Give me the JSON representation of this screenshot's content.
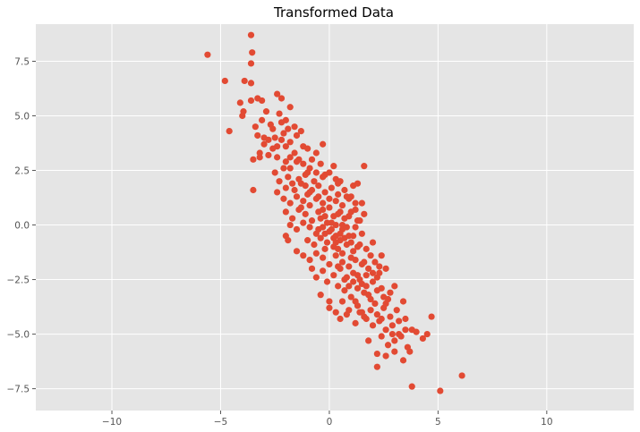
{
  "chart_data": {
    "type": "scatter",
    "title": "Transformed Data",
    "xlabel": "",
    "ylabel": "",
    "xlim": [
      -13.5,
      14
    ],
    "ylim": [
      -8.5,
      9.2
    ],
    "x_ticks": [
      -10,
      -5,
      0,
      5,
      10
    ],
    "x_tick_labels": [
      "−10",
      "−5",
      "0",
      "5",
      "10"
    ],
    "y_ticks": [
      -7.5,
      -5.0,
      -2.5,
      0.0,
      2.5,
      5.0,
      7.5
    ],
    "y_tick_labels": [
      "−7.5",
      "−5.0",
      "−2.5",
      "0.0",
      "2.5",
      "5.0",
      "7.5"
    ],
    "grid": true,
    "colors": {
      "background": "#E5E5E5",
      "grid": "#FFFFFF",
      "marker": "#E24A33"
    },
    "series": [
      {
        "points": [
          [
            -5.6,
            7.8
          ],
          [
            -3.6,
            8.7
          ],
          [
            -3.55,
            7.9
          ],
          [
            -3.6,
            7.4
          ],
          [
            -4.8,
            6.6
          ],
          [
            -3.9,
            6.6
          ],
          [
            -3.6,
            6.5
          ],
          [
            -4.6,
            4.3
          ],
          [
            -4.1,
            5.6
          ],
          [
            -4.0,
            5.0
          ],
          [
            -3.95,
            5.2
          ],
          [
            -3.6,
            5.7
          ],
          [
            -3.3,
            5.8
          ],
          [
            -3.1,
            5.7
          ],
          [
            -2.9,
            5.2
          ],
          [
            -3.1,
            4.8
          ],
          [
            -3.4,
            4.5
          ],
          [
            -3.5,
            3.0
          ],
          [
            -3.5,
            1.6
          ],
          [
            -3.2,
            3.3
          ],
          [
            -3.0,
            3.7
          ],
          [
            -2.6,
            4.4
          ],
          [
            -2.4,
            6.0
          ],
          [
            -2.2,
            5.8
          ],
          [
            -2.3,
            5.1
          ],
          [
            -2.0,
            4.8
          ],
          [
            -1.8,
            5.4
          ],
          [
            -1.6,
            4.5
          ],
          [
            -2.5,
            4.0
          ],
          [
            -2.2,
            3.9
          ],
          [
            -2.0,
            3.6
          ],
          [
            -1.8,
            3.8
          ],
          [
            -1.5,
            4.1
          ],
          [
            -1.2,
            3.6
          ],
          [
            -1.0,
            3.5
          ],
          [
            -0.6,
            3.3
          ],
          [
            -0.3,
            3.7
          ],
          [
            -2.8,
            3.2
          ],
          [
            -2.4,
            3.1
          ],
          [
            -2.0,
            2.9
          ],
          [
            -1.8,
            2.6
          ],
          [
            -1.5,
            2.9
          ],
          [
            -1.2,
            2.8
          ],
          [
            -0.9,
            2.6
          ],
          [
            -0.6,
            2.4
          ],
          [
            -0.3,
            2.2
          ],
          [
            0.0,
            2.4
          ],
          [
            0.3,
            2.1
          ],
          [
            -2.5,
            2.4
          ],
          [
            -2.3,
            2.0
          ],
          [
            -2.0,
            1.7
          ],
          [
            -1.7,
            1.9
          ],
          [
            -1.4,
            2.1
          ],
          [
            -1.1,
            1.8
          ],
          [
            -0.8,
            1.6
          ],
          [
            -0.5,
            1.8
          ],
          [
            -0.2,
            1.5
          ],
          [
            0.1,
            1.7
          ],
          [
            0.4,
            1.4
          ],
          [
            0.7,
            1.6
          ],
          [
            -2.4,
            1.5
          ],
          [
            -2.1,
            1.2
          ],
          [
            -1.8,
            1.0
          ],
          [
            -1.5,
            1.3
          ],
          [
            -1.2,
            1.1
          ],
          [
            -0.9,
            0.9
          ],
          [
            -0.6,
            1.2
          ],
          [
            -0.3,
            1.0
          ],
          [
            0.0,
            0.8
          ],
          [
            0.3,
            1.1
          ],
          [
            0.6,
            0.9
          ],
          [
            0.9,
            1.2
          ],
          [
            1.2,
            1.0
          ],
          [
            -2.0,
            0.6
          ],
          [
            -1.7,
            0.3
          ],
          [
            -1.4,
            0.7
          ],
          [
            -1.1,
            0.5
          ],
          [
            -0.8,
            0.2
          ],
          [
            -0.5,
            0.6
          ],
          [
            -0.2,
            0.4
          ],
          [
            0.1,
            0.1
          ],
          [
            0.4,
            0.5
          ],
          [
            0.7,
            0.3
          ],
          [
            1.0,
            0.6
          ],
          [
            1.3,
            0.2
          ],
          [
            1.6,
            0.5
          ],
          [
            -1.8,
            0.0
          ],
          [
            -1.5,
            -0.2
          ],
          [
            -1.2,
            0.1
          ],
          [
            -0.9,
            -0.1
          ],
          [
            -0.6,
            -0.4
          ],
          [
            -0.3,
            -0.1
          ],
          [
            0.0,
            -0.3
          ],
          [
            0.3,
            0.0
          ],
          [
            0.6,
            -0.2
          ],
          [
            0.9,
            -0.5
          ],
          [
            1.2,
            -0.1
          ],
          [
            1.5,
            -0.4
          ],
          [
            -2.0,
            -0.5
          ],
          [
            -1.9,
            -0.7
          ],
          [
            -1.0,
            -0.7
          ],
          [
            -0.7,
            -0.9
          ],
          [
            -0.4,
            -0.6
          ],
          [
            -0.1,
            -0.8
          ],
          [
            0.2,
            -1.0
          ],
          [
            0.5,
            -0.7
          ],
          [
            0.8,
            -0.9
          ],
          [
            1.1,
            -1.2
          ],
          [
            1.4,
            -0.9
          ],
          [
            1.7,
            -1.1
          ],
          [
            2.0,
            -0.8
          ],
          [
            -1.2,
            -1.4
          ],
          [
            -0.9,
            -1.6
          ],
          [
            -0.6,
            -1.3
          ],
          [
            -0.3,
            -1.5
          ],
          [
            0.0,
            -1.8
          ],
          [
            0.3,
            -1.4
          ],
          [
            0.6,
            -1.7
          ],
          [
            0.9,
            -1.9
          ],
          [
            1.2,
            -1.6
          ],
          [
            1.5,
            -1.8
          ],
          [
            1.8,
            -2.0
          ],
          [
            2.1,
            -1.7
          ],
          [
            2.4,
            -1.4
          ],
          [
            -0.6,
            -2.4
          ],
          [
            -0.3,
            -2.1
          ],
          [
            0.2,
            -2.3
          ],
          [
            0.5,
            -2.0
          ],
          [
            0.8,
            -2.4
          ],
          [
            1.1,
            -2.2
          ],
          [
            1.4,
            -2.5
          ],
          [
            1.7,
            -2.3
          ],
          [
            2.0,
            -2.6
          ],
          [
            2.3,
            -2.2
          ],
          [
            2.6,
            -2.0
          ],
          [
            -0.4,
            -3.2
          ],
          [
            0.0,
            -3.5
          ],
          [
            0.4,
            -2.8
          ],
          [
            0.7,
            -3.0
          ],
          [
            1.0,
            -3.3
          ],
          [
            1.3,
            -2.9
          ],
          [
            1.6,
            -3.1
          ],
          [
            1.9,
            -3.4
          ],
          [
            2.2,
            -3.0
          ],
          [
            2.5,
            -3.3
          ],
          [
            2.8,
            -3.1
          ],
          [
            3.0,
            -2.8
          ],
          [
            0.0,
            -3.8
          ],
          [
            0.3,
            -4.0
          ],
          [
            0.8,
            -4.1
          ],
          [
            1.3,
            -3.7
          ],
          [
            1.6,
            -4.2
          ],
          [
            1.9,
            -3.9
          ],
          [
            2.2,
            -4.1
          ],
          [
            2.5,
            -3.8
          ],
          [
            2.8,
            -4.2
          ],
          [
            3.1,
            -3.9
          ],
          [
            3.4,
            -3.5
          ],
          [
            0.5,
            -4.3
          ],
          [
            1.2,
            -4.5
          ],
          [
            1.5,
            -4.0
          ],
          [
            2.0,
            -4.6
          ],
          [
            2.3,
            -4.4
          ],
          [
            2.6,
            -4.8
          ],
          [
            2.9,
            -4.6
          ],
          [
            3.2,
            -5.0
          ],
          [
            3.5,
            -4.8
          ],
          [
            1.8,
            -5.3
          ],
          [
            2.4,
            -5.1
          ],
          [
            2.7,
            -5.5
          ],
          [
            3.0,
            -5.3
          ],
          [
            3.3,
            -5.1
          ],
          [
            3.6,
            -5.6
          ],
          [
            3.8,
            -4.8
          ],
          [
            4.0,
            -4.9
          ],
          [
            4.3,
            -5.2
          ],
          [
            4.5,
            -5.0
          ],
          [
            4.7,
            -4.2
          ],
          [
            2.2,
            -5.9
          ],
          [
            2.6,
            -6.0
          ],
          [
            3.0,
            -5.8
          ],
          [
            3.4,
            -6.2
          ],
          [
            3.7,
            -5.8
          ],
          [
            2.2,
            -6.5
          ],
          [
            3.8,
            -7.4
          ],
          [
            5.1,
            -7.6
          ],
          [
            6.1,
            -6.9
          ],
          [
            1.6,
            2.7
          ],
          [
            1.1,
            1.8
          ],
          [
            1.0,
            1.3
          ],
          [
            1.5,
            1.0
          ],
          [
            1.4,
            0.2
          ],
          [
            -3.0,
            4.0
          ],
          [
            -2.7,
            4.6
          ],
          [
            -2.2,
            4.7
          ],
          [
            -1.9,
            4.4
          ],
          [
            -1.3,
            4.3
          ],
          [
            -2.6,
            3.5
          ],
          [
            -1.6,
            3.3
          ],
          [
            -0.4,
            2.8
          ],
          [
            0.2,
            2.7
          ],
          [
            -1.1,
            2.3
          ],
          [
            -0.7,
            2.0
          ],
          [
            0.5,
            2.0
          ],
          [
            0.8,
            1.3
          ],
          [
            -1.3,
            0.8
          ],
          [
            -0.4,
            0.3
          ],
          [
            0.9,
            0.4
          ],
          [
            0.2,
            -0.6
          ],
          [
            -0.2,
            -1.1
          ],
          [
            0.6,
            -1.3
          ],
          [
            1.0,
            -1.5
          ],
          [
            1.9,
            -1.4
          ],
          [
            2.2,
            -2.4
          ],
          [
            1.5,
            -2.7
          ],
          [
            0.9,
            -2.8
          ],
          [
            1.2,
            -3.5
          ],
          [
            2.6,
            -3.6
          ],
          [
            3.2,
            -4.4
          ],
          [
            1.7,
            -4.3
          ],
          [
            0.6,
            -3.5
          ],
          [
            -0.1,
            -2.6
          ],
          [
            -0.8,
            -2.0
          ],
          [
            -1.5,
            -1.2
          ],
          [
            -0.3,
            0.7
          ],
          [
            0.0,
            1.2
          ],
          [
            0.3,
            -0.5
          ],
          [
            -0.9,
            1.5
          ],
          [
            0.6,
            0.0
          ],
          [
            0.1,
            -0.2
          ],
          [
            0.4,
            -1.1
          ],
          [
            0.5,
            -0.4
          ],
          [
            0.2,
            0.4
          ],
          [
            -0.1,
            0.1
          ],
          [
            1.1,
            -0.5
          ],
          [
            1.3,
            -1.0
          ],
          [
            0.8,
            -0.1
          ],
          [
            0.3,
            -0.8
          ],
          [
            -0.5,
            -0.2
          ],
          [
            -0.2,
            -0.4
          ],
          [
            1.7,
            -2.8
          ],
          [
            2.4,
            -2.9
          ],
          [
            1.1,
            -2.6
          ],
          [
            0.4,
            -1.9
          ],
          [
            2.1,
            -3.6
          ],
          [
            1.4,
            -4.0
          ],
          [
            0.9,
            -3.9
          ],
          [
            -1.9,
            2.2
          ],
          [
            -2.1,
            2.6
          ],
          [
            -1.6,
            1.6
          ],
          [
            -1.0,
            1.4
          ],
          [
            -0.5,
            1.3
          ],
          [
            -1.3,
            1.9
          ],
          [
            -1.8,
            3.1
          ],
          [
            -2.4,
            3.6
          ],
          [
            -2.1,
            4.2
          ],
          [
            -2.8,
            3.9
          ],
          [
            -3.3,
            4.1
          ],
          [
            -3.2,
            3.1
          ],
          [
            -1.4,
            3.0
          ],
          [
            -0.8,
            3.0
          ],
          [
            -1.0,
            2.4
          ],
          [
            -0.2,
            2.3
          ],
          [
            0.4,
            1.9
          ],
          [
            1.3,
            1.9
          ],
          [
            1.2,
            0.7
          ],
          [
            0.5,
            0.6
          ],
          [
            0.7,
            -0.6
          ],
          [
            1.0,
            -0.8
          ],
          [
            1.6,
            -1.7
          ],
          [
            2.3,
            -1.9
          ],
          [
            2.0,
            -2.2
          ],
          [
            1.3,
            -2.3
          ],
          [
            0.7,
            -2.5
          ],
          [
            1.8,
            -3.2
          ],
          [
            2.7,
            -3.4
          ],
          [
            2.4,
            -4.3
          ],
          [
            3.5,
            -4.3
          ],
          [
            2.9,
            -5.0
          ]
        ]
      }
    ]
  }
}
